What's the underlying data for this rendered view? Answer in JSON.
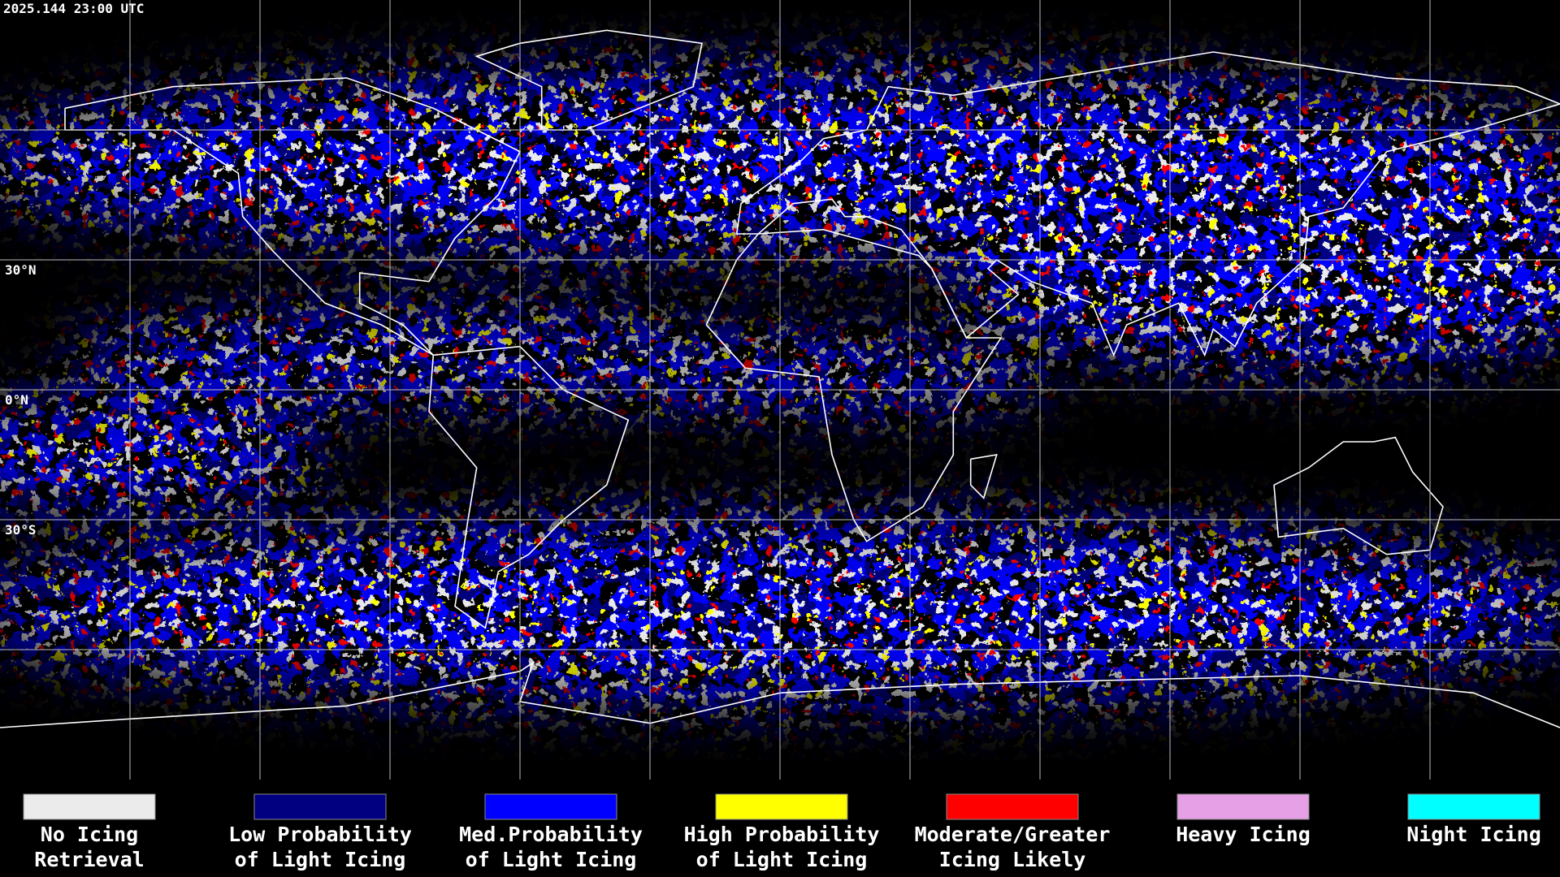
{
  "timestamp": "2025.144 23:00 UTC",
  "latitude_labels": [
    "30°N",
    "0°N",
    "30°S"
  ],
  "legend": {
    "items": [
      {
        "label_lines": [
          "No Icing",
          "Retrieval"
        ],
        "color": "#ebebeb"
      },
      {
        "label_lines": [
          "Low Probability",
          "of Light Icing"
        ],
        "color": "#000080"
      },
      {
        "label_lines": [
          "Med.Probability",
          "of Light Icing"
        ],
        "color": "#0000ff"
      },
      {
        "label_lines": [
          "High Probability",
          "of Light Icing"
        ],
        "color": "#ffff00"
      },
      {
        "label_lines": [
          "Moderate/Greater",
          "Icing Likely"
        ],
        "color": "#ff0000"
      },
      {
        "label_lines": [
          "Heavy Icing"
        ],
        "color": "#e6a0e6"
      },
      {
        "label_lines": [
          "Night Icing"
        ],
        "color": "#00ffff"
      }
    ]
  }
}
